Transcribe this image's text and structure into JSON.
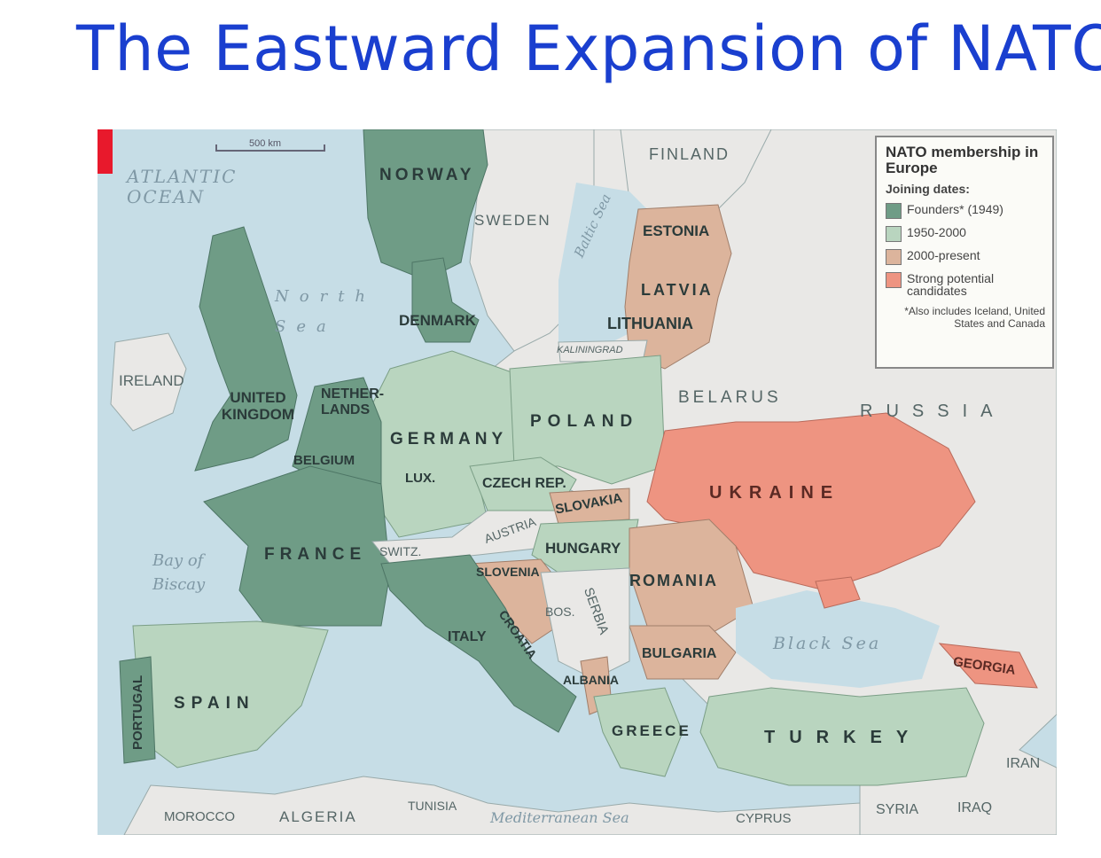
{
  "title": "The Eastward Expansion of NATO",
  "colors": {
    "founders": "#6f9c86",
    "y1950": "#b9d5bf",
    "y2000": "#dcb49c",
    "candidates": "#ee9481",
    "nonmember": "#e9e8e6",
    "water": "#c6dde6",
    "title": "#1a3fcf"
  },
  "scale_label": "500 km",
  "legend": {
    "title": "NATO membership in Europe",
    "subtitle": "Joining dates:",
    "items": [
      {
        "label": "Founders* (1949)",
        "color_key": "founders"
      },
      {
        "label": "1950-2000",
        "color_key": "y1950"
      },
      {
        "label": "2000-present",
        "color_key": "y2000"
      },
      {
        "label": "Strong potential candidates",
        "color_key": "candidates"
      }
    ],
    "note": "*Also includes Iceland, United States and Canada"
  },
  "countries": {
    "norway": "NORWAY",
    "sweden": "SWEDEN",
    "finland": "FINLAND",
    "estonia": "ESTONIA",
    "latvia": "LATVIA",
    "lithuania": "LITHUANIA",
    "kaliningrad": "KALININGRAD",
    "denmark": "DENMARK",
    "ireland": "IRELAND",
    "uk": "UNITED KINGDOM",
    "netherlands": "NETHER-LANDS",
    "belgium": "BELGIUM",
    "lux": "LUX.",
    "germany": "GERMANY",
    "poland": "POLAND",
    "belarus": "BELARUS",
    "russia": "RUSSIA",
    "czech": "CZECH REP.",
    "slovakia": "SLOVAKIA",
    "austria": "AUSTRIA",
    "ukraine": "UKRAINE",
    "hungary": "HUNGARY",
    "switzerland": "SWITZ.",
    "france": "FRANCE",
    "slovenia": "SLOVENIA",
    "croatia": "CROATIA",
    "bosnia": "BOS.",
    "serbia": "SERBIA",
    "romania": "ROMANIA",
    "italy": "ITALY",
    "bulgaria": "BULGARIA",
    "albania": "ALBANIA",
    "georgia": "GEORGIA",
    "portugal": "PORTUGAL",
    "spain": "SPAIN",
    "greece": "GREECE",
    "turkey": "TURKEY",
    "iran": "IRAN",
    "morocco": "MOROCCO",
    "algeria": "ALGERIA",
    "tunisia": "TUNISIA",
    "cyprus": "CYPRUS",
    "syria": "SYRIA",
    "iraq": "IRAQ"
  },
  "seas": {
    "atlantic": "ATLANTIC OCEAN",
    "north_sea": "North Sea",
    "baltic": "Baltic Sea",
    "biscay": "Bay of Biscay",
    "black_sea": "Black Sea",
    "mediterranean": "Mediterranean Sea"
  }
}
